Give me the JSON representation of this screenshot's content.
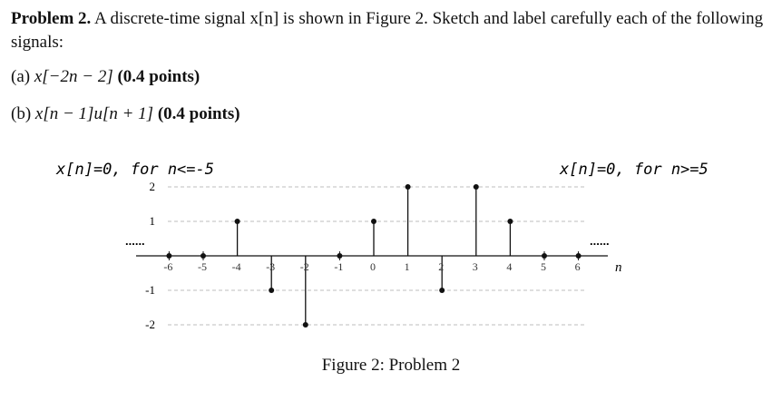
{
  "problem": {
    "label": "Problem 2.",
    "text": "A discrete-time signal x[n] is shown in Figure 2. Sketch and label carefully each of the following signals:"
  },
  "parts": [
    {
      "label": "(a)",
      "expr": "x[−2n − 2]",
      "points": "(0.4 points)"
    },
    {
      "label": "(b)",
      "expr": "x[n − 1]u[n + 1]",
      "points": "(0.4 points)"
    }
  ],
  "figure": {
    "left_note": "x[n]=0, for n<=-5",
    "right_note": "x[n]=0, for n>=5",
    "caption": "Figure 2: Problem 2",
    "dots_left": "......",
    "dots_right": "......",
    "axis_label": "n"
  },
  "chart_data": {
    "type": "stem",
    "xlabel": "n",
    "x_ticks": [
      "-6",
      "-5",
      "-4",
      "-3",
      "-2",
      "-1",
      "0",
      "1",
      "2",
      "3",
      "4",
      "5",
      "6"
    ],
    "y_ticks": [
      "2",
      "1",
      "-1",
      "-2"
    ],
    "x": [
      -6,
      -5,
      -4,
      -3,
      -2,
      -1,
      0,
      1,
      2,
      3,
      4,
      5,
      6
    ],
    "y": [
      0,
      0,
      1,
      -1,
      -2,
      0,
      1,
      2,
      -1,
      2,
      1,
      0,
      0
    ],
    "ylim": [
      -2,
      2
    ],
    "grid": "dashed horizontal lines at y = 2, 1, -1, -2"
  }
}
